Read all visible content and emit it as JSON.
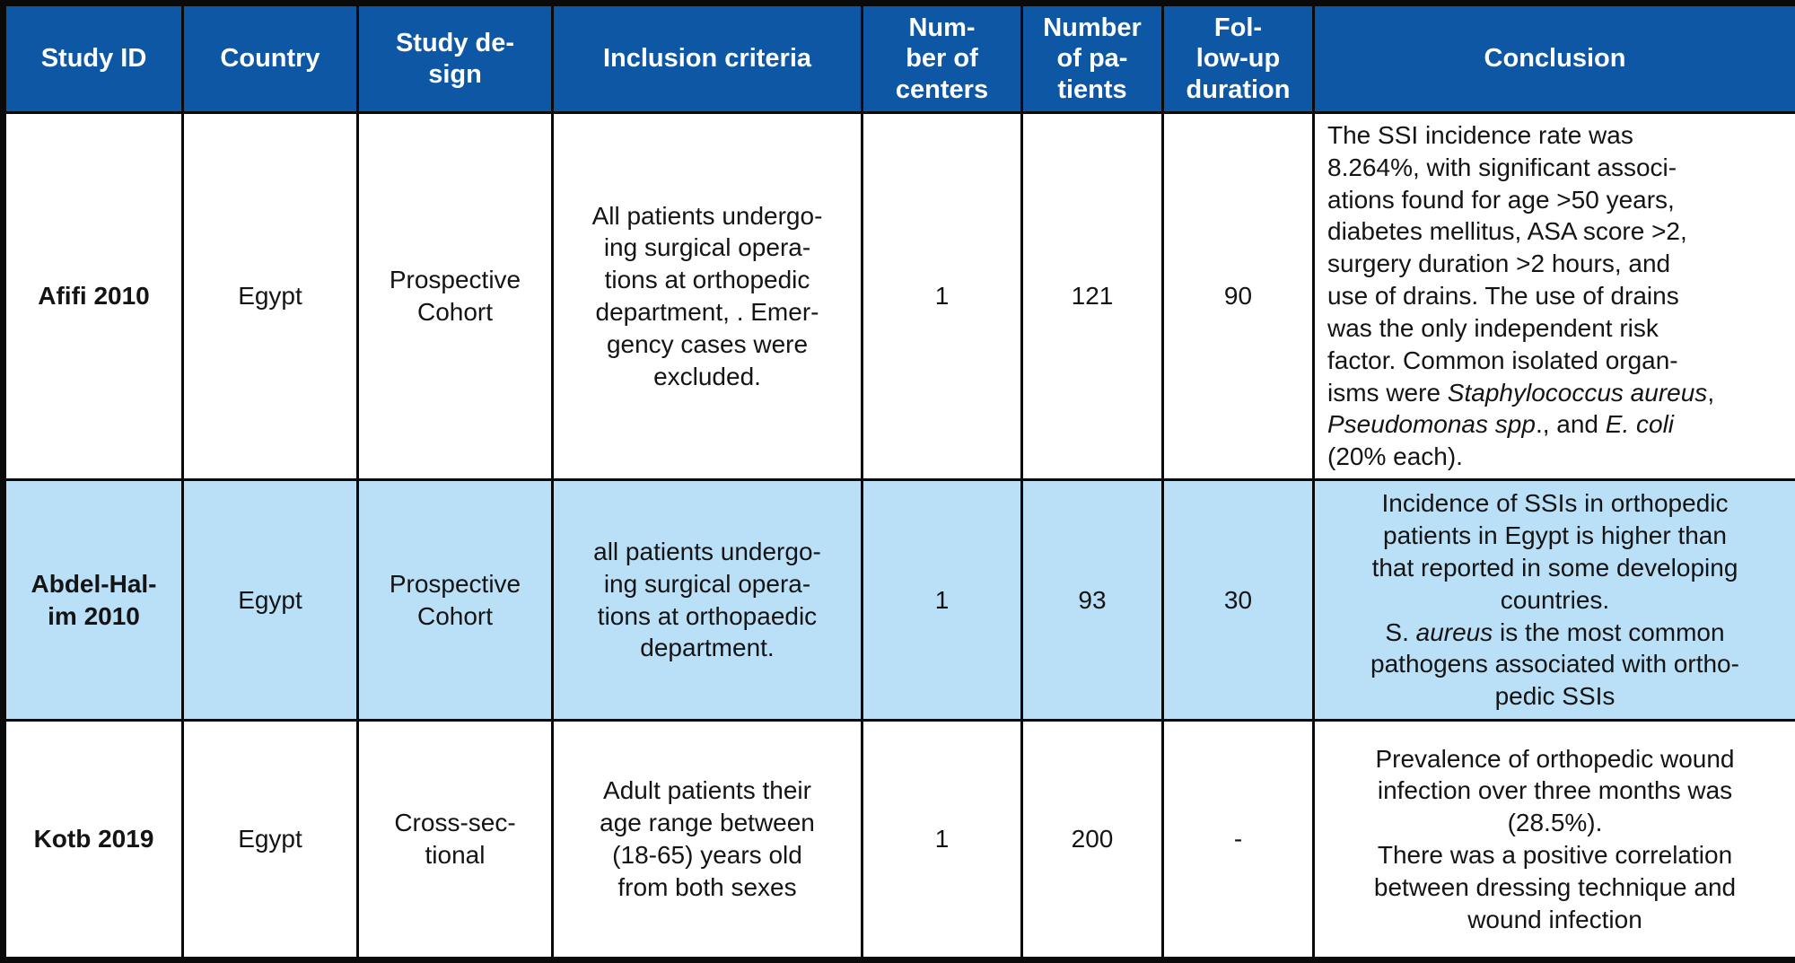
{
  "colors": {
    "header_bg": "#0E57A4",
    "header_text": "#FFFFFF",
    "row_alt_bg": "#BAE0F8",
    "border": "#0A0A0A",
    "text": "#141414"
  },
  "table": {
    "headers": [
      {
        "label": "Study ID"
      },
      {
        "label": "Country"
      },
      {
        "label": "Study de-\nsign"
      },
      {
        "label": "Inclusion criteria"
      },
      {
        "label": "Num-\nber of\ncenters"
      },
      {
        "label": "Number\nof pa-\ntients"
      },
      {
        "label": "Fol-\nlow-up\nduration"
      },
      {
        "label": "Conclusion"
      }
    ],
    "rows": [
      {
        "study_id": "Afifi 2010",
        "country": "Egypt",
        "design": "Prospective\nCohort",
        "inclusion": "All patients undergo-\ning surgical opera-\ntions at orthopedic\ndepartment, . Emer-\ngency cases were\nexcluded.",
        "centers": "1",
        "patients": "121",
        "followup": "90",
        "conclusion": [
          {
            "text": "The SSI incidence rate was\n8.264%, with significant associ-\nations found for age >50 years,\ndiabetes mellitus, ASA score >2,\nsurgery duration >2 hours, and\nuse of drains. The use of drains\nwas the only independent risk\nfactor. Common isolated organ-\nisms were "
          },
          {
            "text": "Staphylococcus aureus",
            "italic": true
          },
          {
            "text": ",\n"
          },
          {
            "text": "Pseudomonas spp",
            "italic": true
          },
          {
            "text": "., and "
          },
          {
            "text": "E. coli",
            "italic": true
          },
          {
            "text": "\n(20% each)."
          }
        ]
      },
      {
        "study_id": "Abdel-Hal-\nim 2010",
        "country": "Egypt",
        "design": "Prospective\nCohort",
        "inclusion": "all patients undergo-\ning surgical opera-\ntions at orthopaedic\ndepartment.",
        "centers": "1",
        "patients": "93",
        "followup": "30",
        "conclusion": [
          {
            "text": "Incidence of SSIs in orthopedic\npatients in Egypt is higher than\nthat reported in some developing\ncountries.\nS. "
          },
          {
            "text": "aureus",
            "italic": true
          },
          {
            "text": " is the most common\npathogens associated with ortho-\npedic SSIs"
          }
        ]
      },
      {
        "study_id": "Kotb 2019",
        "country": "Egypt",
        "design": "Cross-sec-\ntional",
        "inclusion": "Adult patients their\nage range between\n(18-65) years old\nfrom both sexes",
        "centers": "1",
        "patients": "200",
        "followup": "-",
        "conclusion": [
          {
            "text": "Prevalence of orthopedic wound\ninfection over three months was\n(28.5%).\nThere was a positive correlation\nbetween dressing technique and\nwound infection"
          }
        ]
      }
    ]
  }
}
